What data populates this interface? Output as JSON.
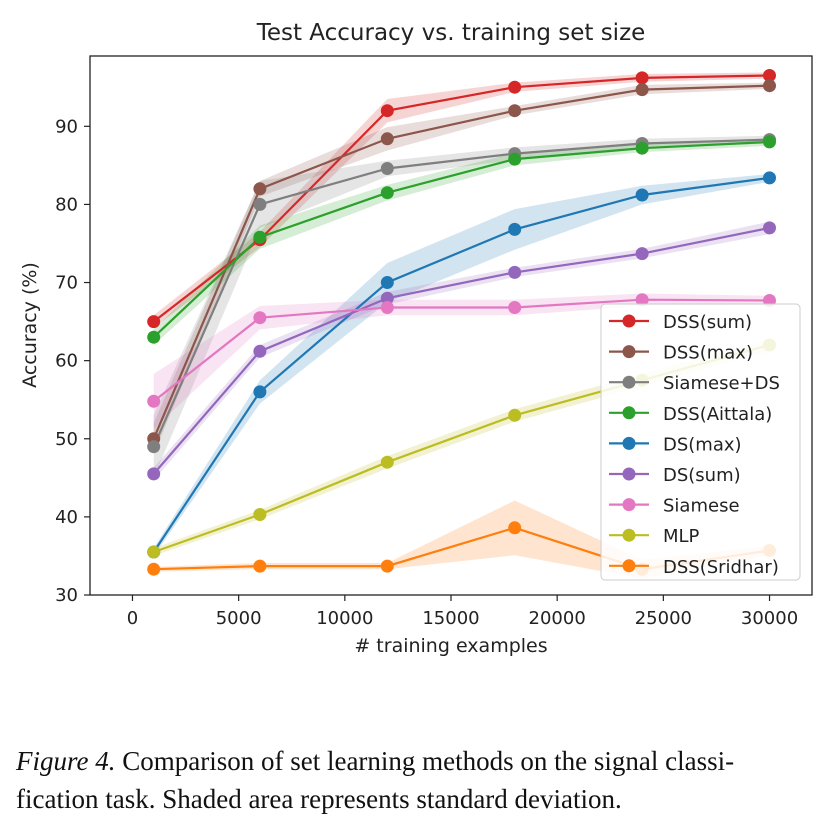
{
  "chart_data": {
    "type": "line",
    "title": "Test Accuracy vs. training set size",
    "xlabel": "# training examples",
    "ylabel": "Accuracy (%)",
    "xlim": [
      -2000,
      32000
    ],
    "ylim": [
      30,
      99
    ],
    "xticks": [
      0,
      5000,
      10000,
      15000,
      20000,
      25000,
      30000
    ],
    "yticks": [
      30,
      40,
      50,
      60,
      70,
      80,
      90
    ],
    "x": [
      1000,
      6000,
      12000,
      18000,
      24000,
      30000
    ],
    "legend_position": "lower-right",
    "shaded": "standard deviation",
    "series": [
      {
        "name": "DSS(sum)",
        "color": "#d62728",
        "values": [
          65.0,
          75.5,
          92.0,
          95.0,
          96.2,
          96.5
        ],
        "std": [
          0.8,
          1.0,
          1.5,
          0.6,
          0.5,
          0.4
        ]
      },
      {
        "name": "DSS(max)",
        "color": "#8c564b",
        "values": [
          50.0,
          82.0,
          88.4,
          92.0,
          94.7,
          95.2
        ],
        "std": [
          2.0,
          1.0,
          1.5,
          0.6,
          0.6,
          0.4
        ]
      },
      {
        "name": "Siamese+DS",
        "color": "#7f7f7f",
        "values": [
          49.0,
          80.0,
          84.6,
          86.5,
          87.8,
          88.3
        ],
        "std": [
          4.0,
          3.0,
          1.0,
          0.8,
          0.6,
          0.5
        ]
      },
      {
        "name": "DSS(Aittala)",
        "color": "#2ca02c",
        "values": [
          63.0,
          75.8,
          81.5,
          85.8,
          87.2,
          88.0
        ],
        "std": [
          1.0,
          1.5,
          1.0,
          0.8,
          0.5,
          0.5
        ]
      },
      {
        "name": "DS(max)",
        "color": "#1f77b4",
        "values": [
          35.5,
          56.0,
          70.0,
          76.8,
          81.2,
          83.4
        ],
        "std": [
          0.5,
          1.5,
          2.5,
          2.6,
          1.2,
          0.5
        ]
      },
      {
        "name": "DS(sum)",
        "color": "#9467bd",
        "values": [
          45.5,
          61.2,
          68.0,
          71.3,
          73.7,
          77.0
        ],
        "std": [
          0.8,
          0.8,
          0.8,
          0.6,
          0.6,
          0.8
        ]
      },
      {
        "name": "Siamese",
        "color": "#e377c2",
        "values": [
          54.8,
          65.5,
          66.8,
          66.8,
          67.8,
          67.7
        ],
        "std": [
          3.5,
          1.5,
          1.0,
          1.0,
          0.8,
          0.6
        ]
      },
      {
        "name": "MLP",
        "color": "#bcbd22",
        "values": [
          35.5,
          40.3,
          47.0,
          53.0,
          57.5,
          62.0
        ],
        "std": [
          0.5,
          0.6,
          0.8,
          0.8,
          0.8,
          0.8
        ]
      },
      {
        "name": "DSS(Sridhar)",
        "color": "#ff7f0e",
        "values": [
          33.3,
          33.7,
          33.7,
          38.6,
          33.3,
          35.7
        ],
        "std": [
          0.3,
          0.4,
          0.4,
          3.5,
          1.2,
          0.6
        ]
      }
    ]
  },
  "caption": {
    "figure_label": "Figure 4.",
    "line1": " Comparison of set learning methods on the signal classi-",
    "line2": "fication task. Shaded area represents standard deviation."
  }
}
